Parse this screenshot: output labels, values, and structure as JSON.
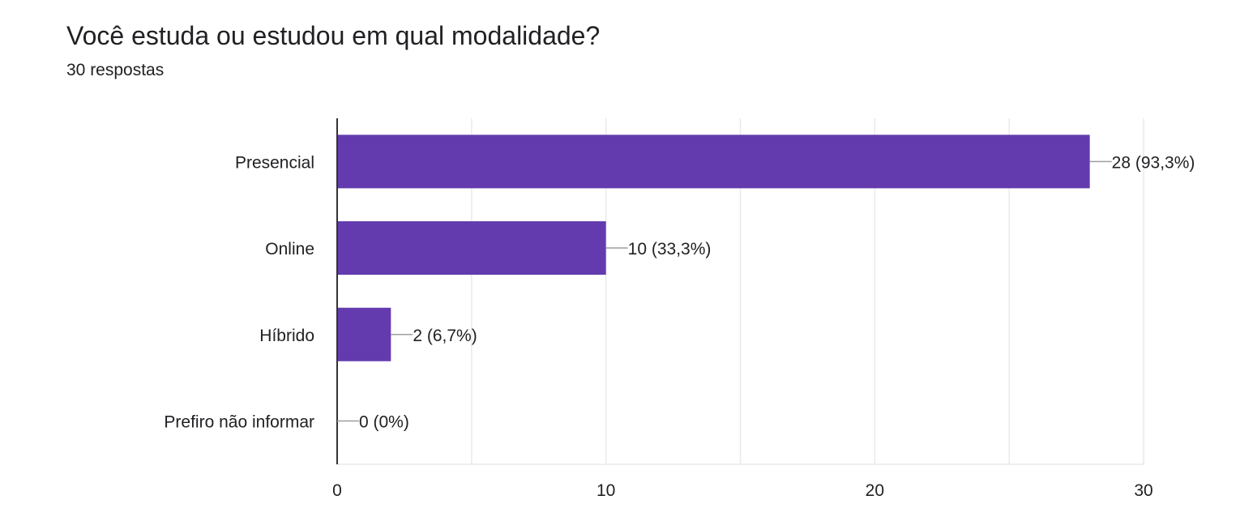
{
  "question": {
    "title": "Você estuda ou estudou em qual modalidade?",
    "responses": "30 respostas"
  },
  "colors": {
    "bar": "#633BAE",
    "gridline": "#E8EAED",
    "axis": "#333333",
    "leader_line": "#9E9E9E",
    "text": "#202124"
  },
  "chart_data": {
    "type": "bar",
    "orientation": "horizontal",
    "title": "Você estuda ou estudou em qual modalidade?",
    "subtitle": "30 respostas",
    "categories": [
      "Presencial",
      "Online",
      "Híbrido",
      "Prefiro não informar"
    ],
    "values": [
      28,
      10,
      2,
      0
    ],
    "data_labels": [
      "28 (93,3%)",
      "10 (33,3%)",
      "2 (6,7%)",
      "0 (0%)"
    ],
    "xlim": [
      0,
      30
    ],
    "x_ticks": [
      0,
      10,
      20,
      30
    ],
    "xlabel": "",
    "ylabel": "",
    "grid": true,
    "legend": "none"
  }
}
